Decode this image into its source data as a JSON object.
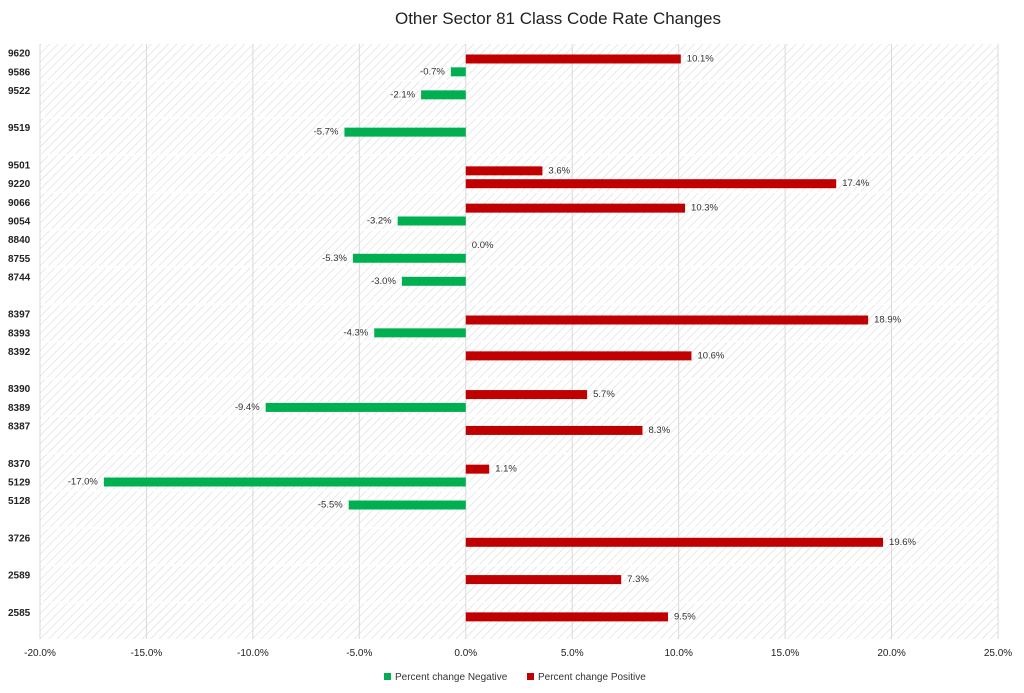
{
  "chart_data": {
    "type": "bar",
    "orientation": "horizontal",
    "title": "Other Sector 81 Class Code Rate Changes",
    "categories": [
      "9620",
      "9586",
      "9522",
      "9519",
      "9501",
      "9220",
      "9066",
      "9054",
      "8840",
      "8755",
      "8744",
      "8397",
      "8393",
      "8392",
      "8390",
      "8389",
      "8387",
      "8370",
      "5129",
      "5128",
      "3726",
      "2589",
      "2585"
    ],
    "groups": [
      [
        "9620",
        "9586"
      ],
      [
        "9522"
      ],
      [
        "9519"
      ],
      [
        "9501",
        "9220"
      ],
      [
        "9066",
        "9054"
      ],
      [
        "8840",
        "8755"
      ],
      [
        "8744"
      ],
      [
        "8397",
        "8393"
      ],
      [
        "8392"
      ],
      [
        "8390",
        "8389"
      ],
      [
        "8387"
      ],
      [
        "8370",
        "5129"
      ],
      [
        "5128"
      ],
      [
        "3726"
      ],
      [
        "2589"
      ],
      [
        "2585"
      ]
    ],
    "series": [
      {
        "name": "Percent change Negative",
        "color": "#00b050",
        "values": {
          "9586": -0.7,
          "9522": -2.1,
          "9519": -5.7,
          "9054": -3.2,
          "8755": -5.3,
          "8744": -3.0,
          "8393": -4.3,
          "8389": -9.4,
          "5129": -17.0,
          "5128": -5.5
        }
      },
      {
        "name": "Percent change Positive",
        "color": "#c00000",
        "values": {
          "9620": 10.1,
          "9501": 3.6,
          "9220": 17.4,
          "9066": 10.3,
          "8840": 0.0,
          "8397": 18.9,
          "8392": 10.6,
          "8390": 5.7,
          "8387": 8.3,
          "8370": 1.1,
          "3726": 19.6,
          "2589": 7.3,
          "2585": 9.5
        }
      }
    ],
    "data_labels": {
      "9620": "10.1%",
      "9586": "-0.7%",
      "9522": "-2.1%",
      "9519": "-5.7%",
      "9501": "3.6%",
      "9220": "17.4%",
      "9066": "10.3%",
      "9054": "-3.2%",
      "8840": "0.0%",
      "8755": "-5.3%",
      "8744": "-3.0%",
      "8397": "18.9%",
      "8393": "-4.3%",
      "8392": "10.6%",
      "8390": "5.7%",
      "8389": "-9.4%",
      "8387": "8.3%",
      "8370": "1.1%",
      "5129": "-17.0%",
      "5128": "-5.5%",
      "3726": "19.6%",
      "2589": "7.3%",
      "2585": "9.5%"
    },
    "xlim": [
      -20,
      25
    ],
    "xticks": [
      -20,
      -15,
      -10,
      -5,
      0,
      5,
      10,
      15,
      20,
      25
    ],
    "xtick_labels": [
      "-20.0%",
      "-15.0%",
      "-10.0%",
      "-5.0%",
      "0.0%",
      "5.0%",
      "10.0%",
      "15.0%",
      "20.0%",
      "25.0%"
    ],
    "xlabel": "",
    "ylabel": "",
    "grid": true,
    "legend": "bottom"
  }
}
